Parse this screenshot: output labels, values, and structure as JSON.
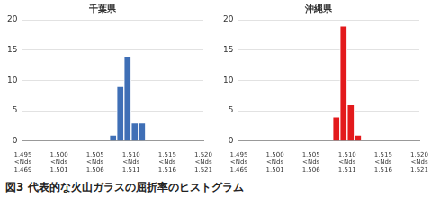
{
  "chart_data": [
    {
      "type": "histogram",
      "title": "千葉県",
      "bins": [
        1.507,
        1.508,
        1.509,
        1.51,
        1.511,
        1.512
      ],
      "values": [
        1,
        9,
        14,
        3,
        3
      ],
      "color": "#3f6fb6",
      "xlim": [
        1.495,
        1.52
      ],
      "xticks": [
        {
          "value": 1.495,
          "label": "1.495\n<Nds\n1.469"
        },
        {
          "value": 1.5,
          "label": "1.500\n<Nds\n1.501"
        },
        {
          "value": 1.505,
          "label": "1.505\n<Nds\n1.506"
        },
        {
          "value": 1.51,
          "label": "1.510\n<Nds\n1.511"
        },
        {
          "value": 1.515,
          "label": "1.515\n<Nds\n1.516"
        },
        {
          "value": 1.52,
          "label": "1.520\n<Nds\n1.521"
        }
      ],
      "ylim": [
        0,
        20
      ],
      "yticks": [
        0,
        5,
        10,
        15,
        20
      ],
      "grid": true
    },
    {
      "type": "histogram",
      "title": "沖縄県",
      "bins": [
        1.508,
        1.509,
        1.51,
        1.511,
        1.512
      ],
      "values": [
        4,
        19,
        6,
        1
      ],
      "color": "#e31a1c",
      "xlim": [
        1.495,
        1.52
      ],
      "xticks": [
        {
          "value": 1.495,
          "label": "1.495\n<Nds\n1.469"
        },
        {
          "value": 1.5,
          "label": "1.500\n<Nds\n1.501"
        },
        {
          "value": 1.505,
          "label": "1.505\n<Nds\n1.506"
        },
        {
          "value": 1.51,
          "label": "1.510\n<Nds\n1.511"
        },
        {
          "value": 1.515,
          "label": "1.515\n<Nds\n1.516"
        },
        {
          "value": 1.52,
          "label": "1.520\n<Nds\n1.521"
        }
      ],
      "ylim": [
        0,
        20
      ],
      "yticks": [
        0,
        5,
        10,
        15,
        20
      ],
      "grid": true
    }
  ],
  "caption": "図3 代表的な火山ガラスの屈折率のヒストグラム"
}
